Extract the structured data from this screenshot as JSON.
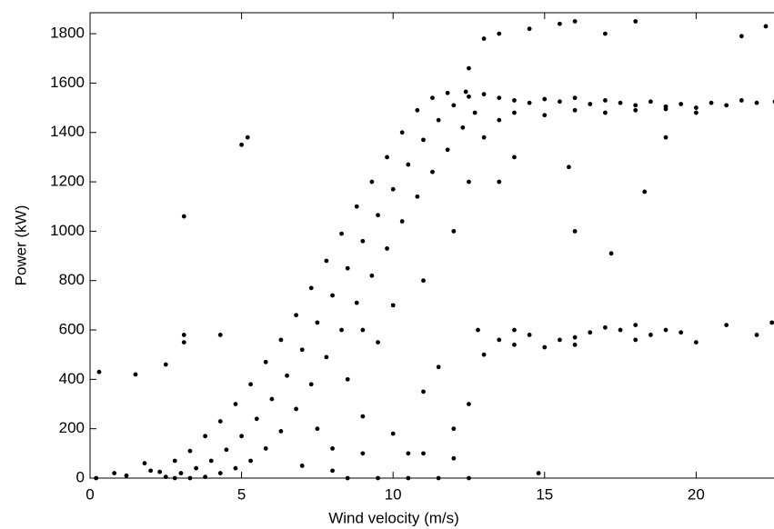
{
  "chart_data": {
    "type": "scatter",
    "color": "#000000",
    "x_label": "Wind velocity (m/s)",
    "y_label": "Power (kW)",
    "xlim": [
      0,
      22.6
    ],
    "ylim": [
      0,
      1885
    ],
    "xticks": [
      0,
      5,
      10,
      15,
      20
    ],
    "yticks": [
      0,
      200,
      400,
      600,
      800,
      1000,
      1200,
      1400,
      1600,
      1800
    ],
    "x": [
      2.5,
      2.3,
      2.8,
      3,
      2.8,
      3.3,
      3.5,
      3.3,
      3.8,
      4,
      3.8,
      4.3,
      4.5,
      4.3,
      4.8,
      5,
      4.8,
      5.3,
      5.5,
      5.3,
      5.8,
      6,
      5.8,
      6.3,
      6.5,
      6.3,
      6.8,
      7,
      6.8,
      7.3,
      7.5,
      7.3,
      7.8,
      8,
      7.8,
      8.3,
      8.5,
      8.3,
      8.8,
      9,
      8.8,
      9.3,
      9.5,
      9.3,
      9.8,
      10,
      9.8,
      10.3,
      10.5,
      10.3,
      10.8,
      11,
      10.8,
      11.3,
      11.5,
      11.3,
      11.8,
      12,
      11.8,
      12.3,
      12.5,
      12.4,
      12.7,
      13,
      13.5,
      14,
      14.5,
      15,
      15.5,
      16,
      16.5,
      17,
      17.5,
      18,
      18.5,
      19,
      19.5,
      20,
      20.5,
      21,
      21.5,
      22,
      22.6,
      14,
      15,
      16,
      17,
      18,
      19,
      20,
      12.8,
      13.5,
      14,
      14.5,
      15,
      15.5,
      16,
      16.5,
      17,
      17.5,
      18,
      18.5,
      19,
      19.5,
      20,
      21,
      22,
      22.5,
      13,
      14,
      16,
      18,
      7,
      8,
      8.5,
      9,
      9.5,
      10,
      10.5,
      11,
      11.5,
      12,
      12.5,
      7.5,
      8,
      9,
      10,
      11,
      12,
      12.5,
      13,
      13.5,
      8.5,
      9.5,
      10.5,
      11.5,
      12.5,
      14.8,
      12,
      11,
      9,
      0.3,
      1.5,
      2.5,
      3.1,
      3.1,
      3.1,
      4.3,
      5,
      5.2,
      13,
      13.5,
      14.5,
      15.5,
      16,
      17,
      18,
      21.5,
      22.3,
      12.5,
      18.3,
      17.2,
      13.5,
      15.8,
      19,
      16,
      14,
      0.2,
      0.8,
      1.2,
      1.8,
      2
    ],
    "values": [
      5,
      25,
      0,
      20,
      70,
      0,
      40,
      110,
      5,
      70,
      170,
      20,
      115,
      230,
      40,
      170,
      300,
      70,
      240,
      380,
      120,
      320,
      470,
      190,
      415,
      560,
      280,
      520,
      660,
      380,
      630,
      770,
      490,
      740,
      880,
      600,
      850,
      990,
      710,
      960,
      1100,
      820,
      1065,
      1200,
      930,
      1170,
      1300,
      1040,
      1270,
      1400,
      1140,
      1370,
      1490,
      1240,
      1450,
      1540,
      1330,
      1510,
      1560,
      1420,
      1545,
      1565,
      1480,
      1555,
      1540,
      1530,
      1520,
      1535,
      1525,
      1540,
      1515,
      1530,
      1520,
      1510,
      1525,
      1505,
      1515,
      1500,
      1520,
      1510,
      1530,
      1520,
      1525,
      1480,
      1470,
      1490,
      1480,
      1490,
      1495,
      1480,
      600,
      560,
      540,
      580,
      530,
      560,
      570,
      590,
      610,
      600,
      620,
      580,
      600,
      590,
      550,
      620,
      580,
      630,
      500,
      600,
      540,
      560,
      50,
      120,
      400,
      250,
      550,
      180,
      100,
      350,
      450,
      80,
      300,
      200,
      30,
      600,
      700,
      800,
      1000,
      1200,
      1380,
      1450,
      0,
      0,
      0,
      0,
      0,
      20,
      200,
      100,
      100,
      430,
      420,
      460,
      1060,
      580,
      550,
      580,
      1350,
      1380,
      1780,
      1800,
      1820,
      1840,
      1850,
      1800,
      1850,
      1790,
      1830,
      1660,
      1160,
      910,
      1200,
      1260,
      1380,
      1000,
      1300,
      0,
      20,
      10,
      60,
      30
    ]
  }
}
